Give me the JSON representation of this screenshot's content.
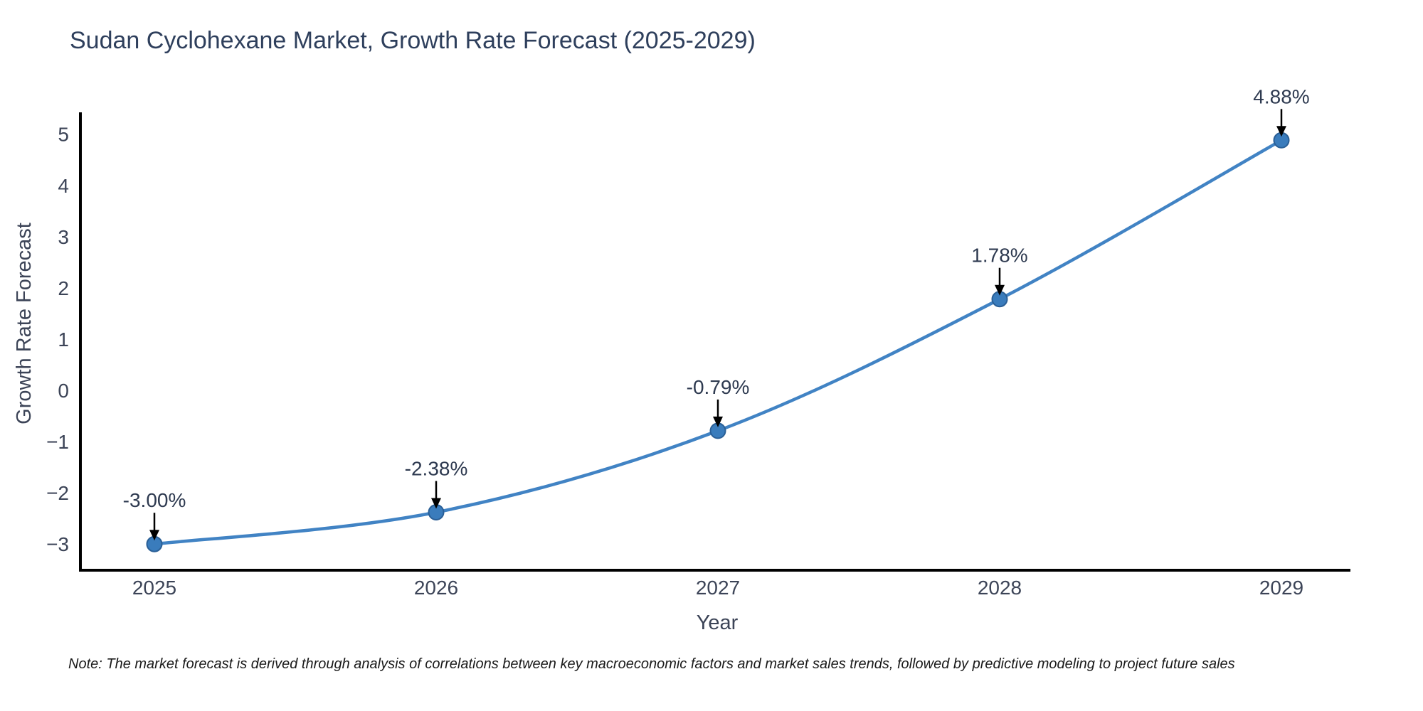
{
  "chart_data": {
    "type": "line",
    "line_shape": "spline",
    "title": "Sudan Cyclohexane Market, Growth Rate Forecast (2025-2029)",
    "xlabel": "Year",
    "ylabel": "Growth Rate Forecast",
    "categories": [
      "2025",
      "2026",
      "2027",
      "2028",
      "2029"
    ],
    "series": [
      {
        "name": "Growth Rate Forecast",
        "values": [
          -3.0,
          -2.38,
          -0.79,
          1.78,
          4.88
        ]
      }
    ],
    "point_labels": [
      "-3.00%",
      "-2.38%",
      "-0.79%",
      "1.78%",
      "4.88%"
    ],
    "yticks": [
      5,
      4,
      3,
      2,
      1,
      0,
      -1,
      -2,
      -3
    ],
    "ytick_labels": [
      "5",
      "4",
      "3",
      "2",
      "1",
      "0",
      "−1",
      "−2",
      "−3"
    ],
    "ylim": [
      -3.5,
      5.4
    ],
    "grid": false,
    "legend": "none",
    "marker_style": "circle-with-down-arrow-annotation",
    "colors": {
      "title": "#2e3f5c",
      "tick": "#3c4457",
      "annotation": "#2e3a50",
      "line": "#4183c4",
      "marker": "#3a7cbc",
      "marker_edge": "#2a5f96",
      "axis": "#000000",
      "arrow": "#000000",
      "note": "#1a1a1a",
      "background": "#ffffff"
    }
  },
  "note": "Note: The market forecast is derived through analysis of correlations between key macroeconomic factors and market sales trends, followed by predictive modeling to project future sales"
}
